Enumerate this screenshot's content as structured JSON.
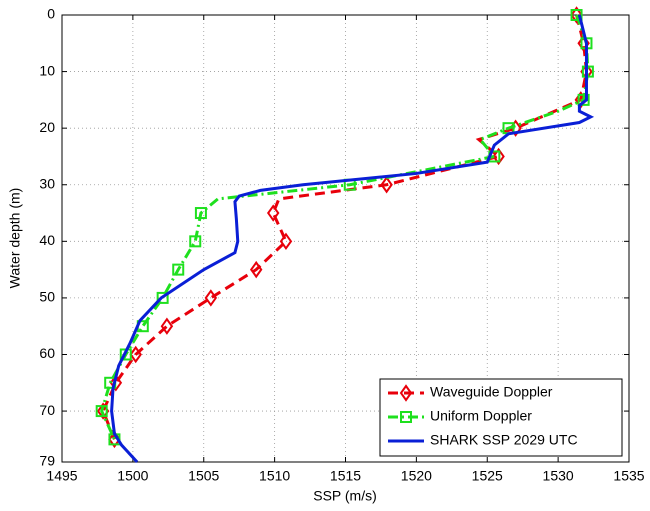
{
  "chart_data": {
    "type": "line",
    "x_label": "SSP (m/s)",
    "y_label": "Water depth (m)",
    "xlim": [
      1495,
      1535
    ],
    "xticks": [
      1495,
      1500,
      1505,
      1510,
      1515,
      1520,
      1525,
      1530,
      1535
    ],
    "ylim": [
      79,
      0
    ],
    "yticks": [
      0,
      10,
      20,
      30,
      40,
      50,
      60,
      70,
      79
    ],
    "grid": true,
    "legend": "lower right",
    "series": [
      {
        "name": "Waveguide Doppler",
        "color": "#e8000b",
        "dash": "dashed",
        "marker": "diamond",
        "x": [
          1531.3,
          1531.8,
          1532,
          1531.6,
          1527,
          1524.4,
          1525.8,
          1517.9,
          1510.3,
          1509.9,
          1510.8,
          1508.7,
          1505.5,
          1502.4,
          1500.2,
          1498.8,
          1497.9,
          1498.7
        ],
        "y": [
          0,
          5,
          10,
          15,
          20,
          22,
          25,
          30,
          32.5,
          35,
          40,
          45,
          50,
          55,
          60,
          65,
          70,
          75
        ]
      },
      {
        "name": "Uniform Doppler",
        "color": "#1ee01e",
        "dash": "dashdot",
        "marker": "square",
        "x": [
          1531.3,
          1532,
          1532.1,
          1531.8,
          1530,
          1526.5,
          1524.5,
          1525.5,
          1515.3,
          1506,
          1504.8,
          1504.4,
          1503.2,
          1502.1,
          1500.7,
          1499.5,
          1498.4,
          1497.8,
          1498.7
        ],
        "y": [
          0,
          5,
          10,
          15,
          17,
          20,
          22,
          25,
          30,
          32.5,
          35,
          40,
          45,
          50,
          55,
          60,
          65,
          70,
          75
        ]
      },
      {
        "name": "SHARK SSP 2029 UTC",
        "color": "#0a1fd6",
        "dash": "solid",
        "marker": "none",
        "x": [
          1531.5,
          1532,
          1532,
          1531.5,
          1531.5,
          1532.3,
          1531.5,
          1526.5,
          1525.5,
          1525,
          1520,
          1512,
          1509,
          1507.5,
          1507.2,
          1507.3,
          1507.4,
          1507.2,
          1505,
          1502,
          1500.5,
          1499.8,
          1499,
          1498.6,
          1498.5,
          1498.7,
          1499.2,
          1500.3
        ],
        "y": [
          0,
          5,
          15,
          16,
          17,
          18,
          19,
          21,
          23,
          26,
          28,
          30,
          31,
          32,
          33,
          36,
          40,
          42,
          45,
          50,
          54,
          58,
          62,
          66,
          70,
          74,
          76,
          79
        ]
      }
    ]
  }
}
